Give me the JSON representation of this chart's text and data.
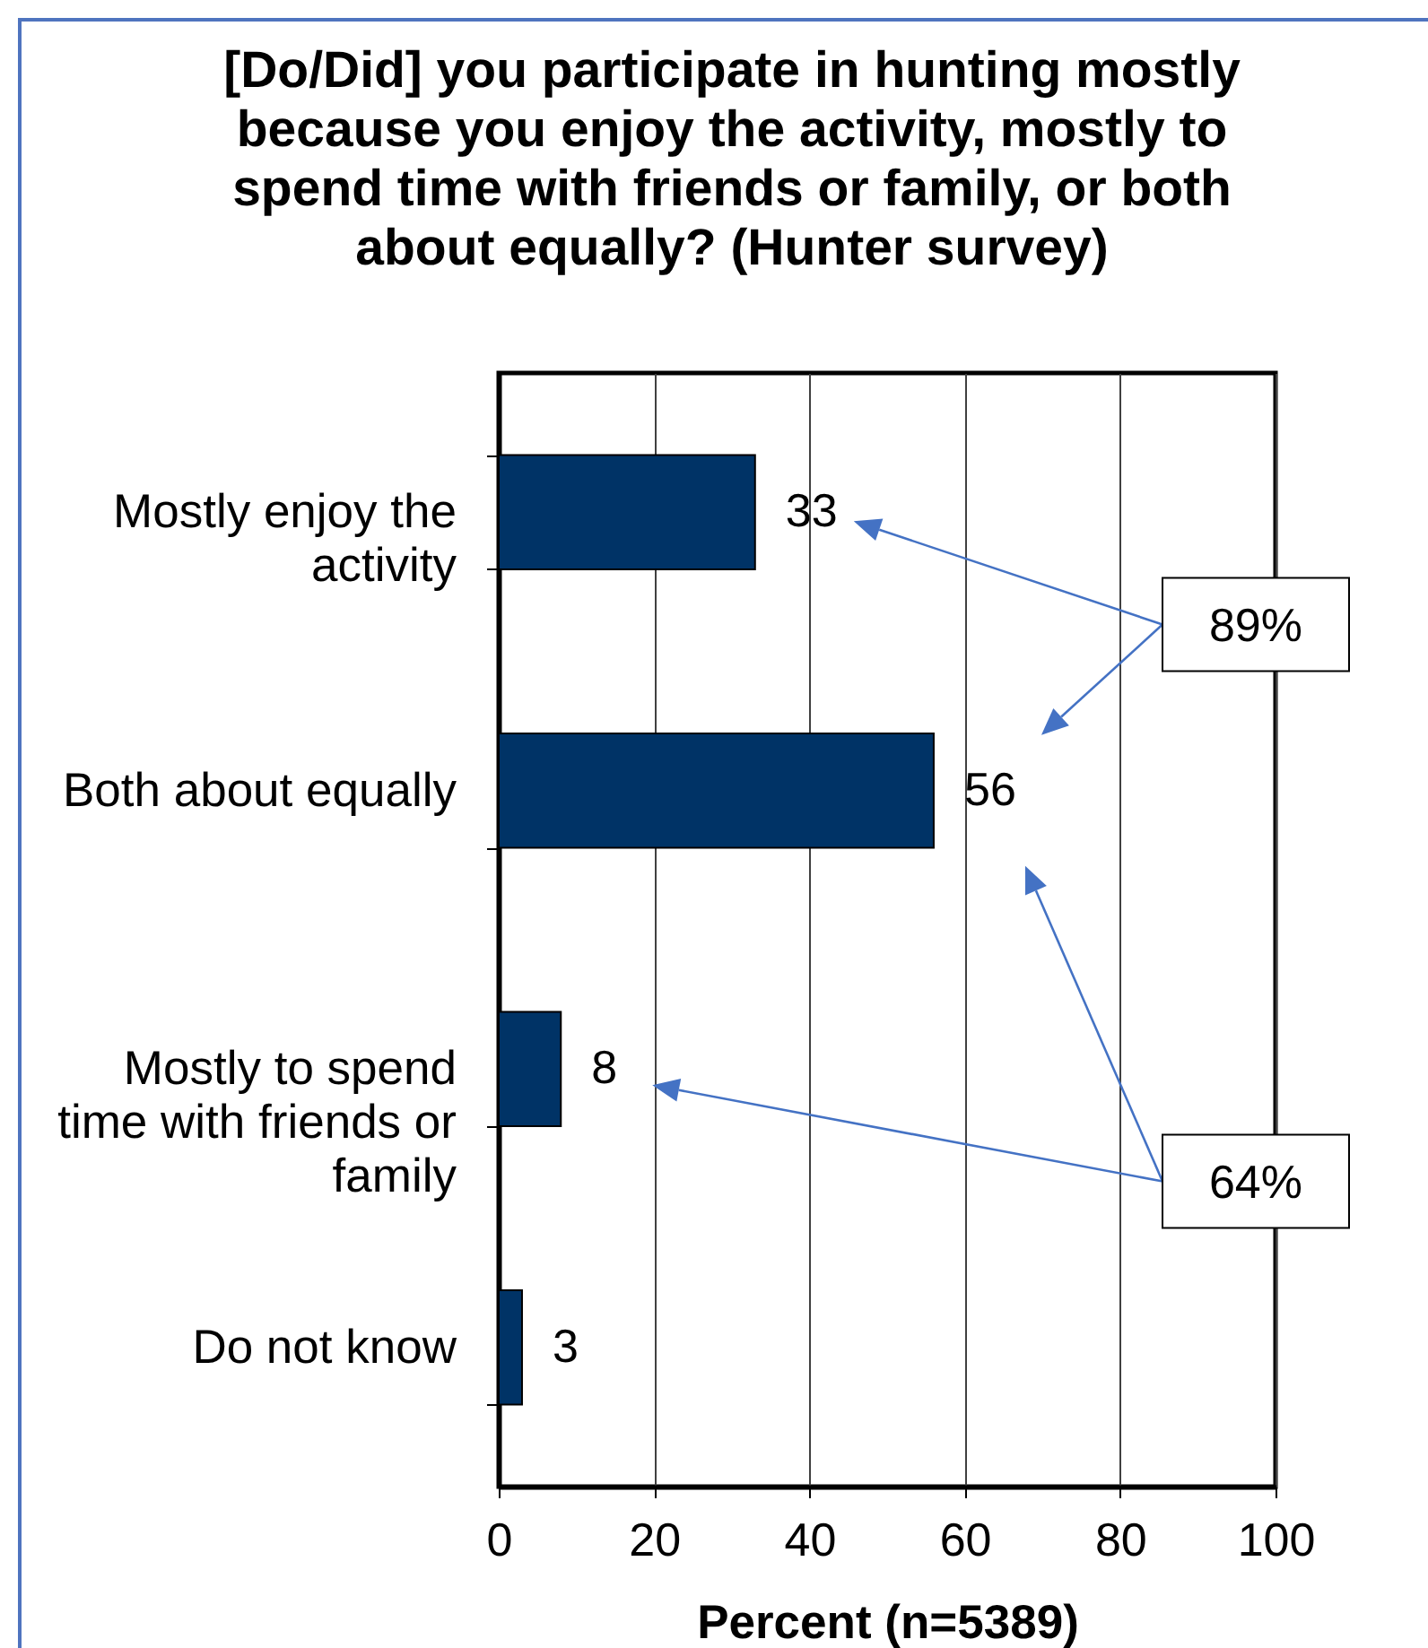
{
  "chart_data": {
    "type": "bar",
    "orientation": "horizontal",
    "title": "[Do/Did] you participate in hunting mostly because you enjoy the activity, mostly to spend time with friends or family, or both about equally? (Hunter survey)",
    "xlabel": "Percent (n=5389)",
    "categories": [
      "Mostly enjoy the activity",
      "Both about equally",
      "Mostly to spend time with friends or family",
      "Do not know"
    ],
    "values": [
      33,
      56,
      8,
      3
    ],
    "color": "#003366",
    "xlim": [
      0,
      100
    ],
    "xticks": [
      0,
      20,
      40,
      60,
      80,
      100
    ],
    "grid": "x",
    "data_labels": true,
    "annotations": [
      "89%",
      "64%"
    ]
  }
}
